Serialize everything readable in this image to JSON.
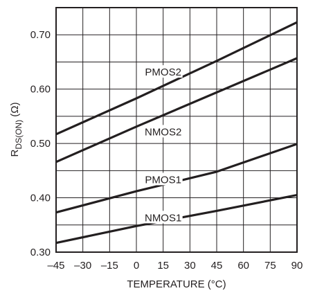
{
  "chart_data": {
    "type": "line",
    "title": "",
    "xlabel": "TEMPERATURE (°C)",
    "ylabel": {
      "main": "R",
      "sub": "DS(ON)",
      "unit": " (Ω)"
    },
    "xlim": [
      -45,
      90
    ],
    "ylim": [
      0.3,
      0.75
    ],
    "x_ticks": [
      -45,
      -30,
      -15,
      0,
      15,
      30,
      45,
      60,
      75,
      90
    ],
    "x_tick_labels": [
      "–45",
      "–30",
      "–15",
      "0",
      "15",
      "30",
      "45",
      "60",
      "75",
      "90"
    ],
    "y_ticks": [
      0.3,
      0.4,
      0.5,
      0.6,
      0.7
    ],
    "y_tick_labels": [
      "0.30",
      "0.40",
      "0.50",
      "0.60",
      "0.70"
    ],
    "y_grid_step": 0.05,
    "grid": true,
    "series": [
      {
        "name": "PMOS2",
        "x": [
          -45,
          0,
          45,
          90
        ],
        "y": [
          0.517,
          0.583,
          0.652,
          0.723
        ]
      },
      {
        "name": "NMOS2",
        "x": [
          -45,
          0,
          45,
          90
        ],
        "y": [
          0.466,
          0.531,
          0.594,
          0.657
        ]
      },
      {
        "name": "PMOS1",
        "x": [
          -45,
          0,
          45,
          90
        ],
        "y": [
          0.373,
          0.412,
          0.448,
          0.499
        ]
      },
      {
        "name": "NMOS1",
        "x": [
          -45,
          0,
          45,
          90
        ],
        "y": [
          0.317,
          0.348,
          0.376,
          0.405
        ]
      }
    ]
  }
}
